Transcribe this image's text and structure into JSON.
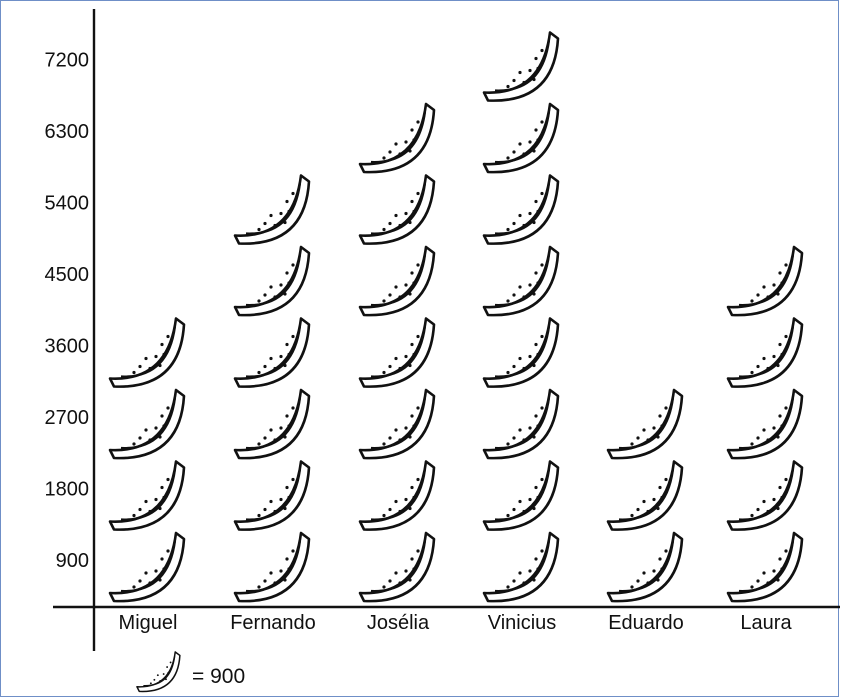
{
  "chart_data": {
    "type": "pictograph",
    "categories": [
      "Miguel",
      "Fernando",
      "Josélia",
      "Vinicius",
      "Eduardo",
      "Laura"
    ],
    "values": [
      3600,
      5400,
      6300,
      7200,
      2700,
      4500
    ],
    "icon": "watermelon-slice-icon",
    "unit_value": 900,
    "y_ticks": [
      "900",
      "1800",
      "2700",
      "3600",
      "4500",
      "5400",
      "6300",
      "7200"
    ],
    "legend": {
      "icon": "watermelon-slice-icon",
      "text": "= 900"
    }
  }
}
